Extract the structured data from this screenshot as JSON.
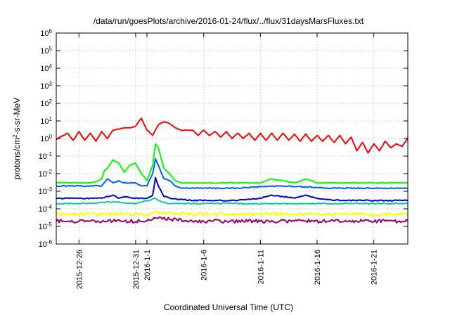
{
  "chart_data": {
    "type": "line",
    "title": "/data/run/goesPlots/archive/2016-01-24/flux/../flux/31daysMarsFluxes.txt",
    "xlabel": "Coordinated Universal Time (UTC)",
    "ylabel_parts": {
      "before": "protons/cm",
      "sup": "2",
      "after": "-s-sr-MeV"
    },
    "y_scale": "log",
    "ylim": [
      1e-06,
      1000000.0
    ],
    "y_ticks": [
      {
        "base": "10",
        "exp": "-6",
        "value": 1e-06
      },
      {
        "base": "10",
        "exp": "-5",
        "value": 1e-05
      },
      {
        "base": "10",
        "exp": "-4",
        "value": 0.0001
      },
      {
        "base": "10",
        "exp": "-3",
        "value": 0.001
      },
      {
        "base": "10",
        "exp": "-2",
        "value": 0.01
      },
      {
        "base": "10",
        "exp": "-1",
        "value": 0.1
      },
      {
        "base": "10",
        "exp": "0",
        "value": 1
      },
      {
        "base": "10",
        "exp": "1",
        "value": 10
      },
      {
        "base": "10",
        "exp": "2",
        "value": 100
      },
      {
        "base": "10",
        "exp": "3",
        "value": 1000
      },
      {
        "base": "10",
        "exp": "4",
        "value": 10000
      },
      {
        "base": "10",
        "exp": "5",
        "value": 100000
      },
      {
        "base": "10",
        "exp": "6",
        "value": 1000000
      }
    ],
    "x_range_days": [
      "2015-12-24",
      "2016-01-24"
    ],
    "x_ticks": [
      {
        "label": "2015-12-26",
        "date": "2015-12-26"
      },
      {
        "label": "2015-12-31",
        "date": "2015-12-31"
      },
      {
        "label": "2016-1-1",
        "date": "2016-01-01"
      },
      {
        "label": "2016-1-6",
        "date": "2016-01-06"
      },
      {
        "label": "2016-1-11",
        "date": "2016-01-11"
      },
      {
        "label": "2016-1-16",
        "date": "2016-01-16"
      },
      {
        "label": "2016-1-21",
        "date": "2016-01-21"
      }
    ],
    "grid": true,
    "legend": "none",
    "series": [
      {
        "color": "#ff0000",
        "points": [
          [
            "2015-12-24",
            0.9
          ],
          [
            "2015-12-25",
            2.0
          ],
          [
            "2015-12-25T12",
            0.8
          ],
          [
            "2015-12-26",
            2.5
          ],
          [
            "2015-12-26T12",
            0.8
          ],
          [
            "2015-12-27",
            2.0
          ],
          [
            "2015-12-27T12",
            0.7
          ],
          [
            "2015-12-28",
            2.5
          ],
          [
            "2015-12-28T12",
            1.0
          ],
          [
            "2015-12-29",
            3.0
          ],
          [
            "2015-12-30",
            4.0
          ],
          [
            "2015-12-30T12",
            4.0
          ],
          [
            "2015-12-31",
            5.0
          ],
          [
            "2015-12-31T12",
            14.0
          ],
          [
            "2016-01-01",
            3.0
          ],
          [
            "2016-01-01T12",
            1.5
          ],
          [
            "2016-01-02",
            6.0
          ],
          [
            "2016-01-02T12",
            9.0
          ],
          [
            "2016-01-03",
            7.0
          ],
          [
            "2016-01-03T12",
            4.0
          ],
          [
            "2016-01-04",
            3.0
          ],
          [
            "2016-01-05",
            3.0
          ],
          [
            "2016-01-05T12",
            1.5
          ],
          [
            "2016-01-06",
            3.0
          ],
          [
            "2016-01-06T12",
            1.5
          ],
          [
            "2016-01-07",
            2.5
          ],
          [
            "2016-01-07T12",
            1.2
          ],
          [
            "2016-01-08",
            2.5
          ],
          [
            "2016-01-08T12",
            1.0
          ],
          [
            "2016-01-09",
            2.0
          ],
          [
            "2016-01-09T12",
            1.0
          ],
          [
            "2016-01-10",
            2.0
          ],
          [
            "2016-01-10T12",
            0.8
          ],
          [
            "2016-01-11",
            2.0
          ],
          [
            "2016-01-11T12",
            0.8
          ],
          [
            "2016-01-12",
            2.0
          ],
          [
            "2016-01-12T12",
            0.8
          ],
          [
            "2016-01-13",
            2.0
          ],
          [
            "2016-01-13T12",
            0.8
          ],
          [
            "2016-01-14",
            1.8
          ],
          [
            "2016-01-14T12",
            0.7
          ],
          [
            "2016-01-15",
            1.8
          ],
          [
            "2016-01-15T12",
            0.7
          ],
          [
            "2016-01-16",
            1.5
          ],
          [
            "2016-01-16T12",
            0.7
          ],
          [
            "2016-01-17",
            1.5
          ],
          [
            "2016-01-17T12",
            0.6
          ],
          [
            "2016-01-18",
            1.5
          ],
          [
            "2016-01-18T12",
            0.5
          ],
          [
            "2016-01-19",
            1.2
          ],
          [
            "2016-01-19T12",
            0.2
          ],
          [
            "2016-01-20",
            0.6
          ],
          [
            "2016-01-20T12",
            0.15
          ],
          [
            "2016-01-21",
            0.5
          ],
          [
            "2016-01-21T12",
            0.2
          ],
          [
            "2016-01-22",
            0.7
          ],
          [
            "2016-01-22T12",
            0.3
          ],
          [
            "2016-01-23",
            0.5
          ],
          [
            "2016-01-23T12",
            0.35
          ],
          [
            "2016-01-24",
            1.1
          ]
        ]
      },
      {
        "color": "#00ff00",
        "points": [
          [
            "2015-12-24",
            0.003
          ],
          [
            "2015-12-26",
            0.003
          ],
          [
            "2015-12-27",
            0.003
          ],
          [
            "2015-12-27T12",
            0.0035
          ],
          [
            "2015-12-28",
            0.005
          ],
          [
            "2015-12-28T06",
            0.015
          ],
          [
            "2015-12-28T12",
            0.02
          ],
          [
            "2015-12-29",
            0.06
          ],
          [
            "2015-12-29T12",
            0.04
          ],
          [
            "2015-12-30",
            0.012
          ],
          [
            "2015-12-30T12",
            0.03
          ],
          [
            "2015-12-31",
            0.04
          ],
          [
            "2015-12-31T12",
            0.01
          ],
          [
            "2016-01-01",
            0.004
          ],
          [
            "2016-01-01T12",
            0.03
          ],
          [
            "2016-01-01T18",
            0.5
          ],
          [
            "2016-01-02",
            0.3
          ],
          [
            "2016-01-02T12",
            0.02
          ],
          [
            "2016-01-03",
            0.01
          ],
          [
            "2016-01-03T12",
            0.004
          ],
          [
            "2016-01-04",
            0.003
          ],
          [
            "2016-01-06",
            0.003
          ],
          [
            "2016-01-09",
            0.003
          ],
          [
            "2016-01-11",
            0.003
          ],
          [
            "2016-01-12",
            0.005
          ],
          [
            "2016-01-13",
            0.004
          ],
          [
            "2016-01-14",
            0.003
          ],
          [
            "2016-01-15",
            0.005
          ],
          [
            "2016-01-16",
            0.003
          ],
          [
            "2016-01-18",
            0.003
          ],
          [
            "2016-01-20",
            0.003
          ],
          [
            "2016-01-22",
            0.003
          ],
          [
            "2016-01-24",
            0.003
          ]
        ]
      },
      {
        "color": "#0060ff",
        "points": [
          [
            "2015-12-24",
            0.002
          ],
          [
            "2015-12-26",
            0.002
          ],
          [
            "2015-12-27",
            0.002
          ],
          [
            "2015-12-28",
            0.002
          ],
          [
            "2015-12-28T12",
            0.005
          ],
          [
            "2015-12-29",
            0.003
          ],
          [
            "2015-12-29T12",
            0.004
          ],
          [
            "2015-12-30",
            0.003
          ],
          [
            "2015-12-31",
            0.003
          ],
          [
            "2015-12-31T12",
            0.002
          ],
          [
            "2016-01-01",
            0.002
          ],
          [
            "2016-01-01T12",
            0.01
          ],
          [
            "2016-01-01T18",
            0.07
          ],
          [
            "2016-01-02",
            0.03
          ],
          [
            "2016-01-02T12",
            0.005
          ],
          [
            "2016-01-03",
            0.004
          ],
          [
            "2016-01-03T12",
            0.002
          ],
          [
            "2016-01-04",
            0.0015
          ],
          [
            "2016-01-06",
            0.0015
          ],
          [
            "2016-01-09",
            0.0015
          ],
          [
            "2016-01-11",
            0.0018
          ],
          [
            "2016-01-13",
            0.002
          ],
          [
            "2016-01-15",
            0.0018
          ],
          [
            "2016-01-17",
            0.0015
          ],
          [
            "2016-01-20",
            0.0015
          ],
          [
            "2016-01-24",
            0.0015
          ]
        ]
      },
      {
        "color": "#0000cc",
        "points": [
          [
            "2015-12-24",
            0.0004
          ],
          [
            "2015-12-26",
            0.0004
          ],
          [
            "2015-12-27",
            0.0004
          ],
          [
            "2015-12-28",
            0.0004
          ],
          [
            "2015-12-28T12",
            0.0005
          ],
          [
            "2015-12-29",
            0.0006
          ],
          [
            "2015-12-29T12",
            0.0004
          ],
          [
            "2015-12-30",
            0.0005
          ],
          [
            "2015-12-31",
            0.0004
          ],
          [
            "2016-01-01",
            0.0004
          ],
          [
            "2016-01-01T12",
            0.0006
          ],
          [
            "2016-01-01T18",
            0.006
          ],
          [
            "2016-01-02",
            0.002
          ],
          [
            "2016-01-02T12",
            0.0005
          ],
          [
            "2016-01-03",
            0.0004
          ],
          [
            "2016-01-05",
            0.0003
          ],
          [
            "2016-01-07",
            0.0003
          ],
          [
            "2016-01-09",
            0.0003
          ],
          [
            "2016-01-11",
            0.0004
          ],
          [
            "2016-01-12",
            0.0006
          ],
          [
            "2016-01-13",
            0.0005
          ],
          [
            "2016-01-14",
            0.0004
          ],
          [
            "2016-01-15",
            0.0006
          ],
          [
            "2016-01-16",
            0.0004
          ],
          [
            "2016-01-18",
            0.0003
          ],
          [
            "2016-01-20",
            0.0003
          ],
          [
            "2016-01-22",
            0.0003
          ],
          [
            "2016-01-24",
            0.0003
          ]
        ]
      },
      {
        "color": "#00d0a0",
        "points": [
          [
            "2015-12-24",
            0.0002
          ],
          [
            "2015-12-27",
            0.0002
          ],
          [
            "2015-12-29",
            0.00025
          ],
          [
            "2015-12-31",
            0.0002
          ],
          [
            "2016-01-01T18",
            0.0004
          ],
          [
            "2016-01-02",
            0.0003
          ],
          [
            "2016-01-03",
            0.0002
          ],
          [
            "2016-01-06",
            0.0002
          ],
          [
            "2016-01-09",
            0.0002
          ],
          [
            "2016-01-12",
            0.0002
          ],
          [
            "2016-01-15",
            0.0002
          ],
          [
            "2016-01-18",
            0.0002
          ],
          [
            "2016-01-21",
            0.0002
          ],
          [
            "2016-01-24",
            0.0002
          ]
        ]
      },
      {
        "color": "#ffff00",
        "points": [
          [
            "2015-12-24",
            5e-05
          ],
          [
            "2015-12-27",
            5e-05
          ],
          [
            "2015-12-30",
            5e-05
          ],
          [
            "2016-01-01",
            5e-05
          ],
          [
            "2016-01-02",
            6e-05
          ],
          [
            "2016-01-05",
            5e-05
          ],
          [
            "2016-01-08",
            5e-05
          ],
          [
            "2016-01-11",
            5e-05
          ],
          [
            "2016-01-14",
            5e-05
          ],
          [
            "2016-01-17",
            5e-05
          ],
          [
            "2016-01-20",
            5e-05
          ],
          [
            "2016-01-24",
            5e-05
          ]
        ]
      },
      {
        "color": "#990066",
        "points": [
          [
            "2015-12-24",
            2e-05
          ],
          [
            "2015-12-27",
            2e-05
          ],
          [
            "2015-12-30",
            2e-05
          ],
          [
            "2016-01-01",
            2e-05
          ],
          [
            "2016-01-02",
            3e-05
          ],
          [
            "2016-01-05",
            2e-05
          ],
          [
            "2016-01-08",
            2e-05
          ],
          [
            "2016-01-11",
            2e-05
          ],
          [
            "2016-01-14",
            2e-05
          ],
          [
            "2016-01-17",
            2e-05
          ],
          [
            "2016-01-20",
            2e-05
          ],
          [
            "2016-01-24",
            2e-05
          ]
        ]
      }
    ]
  }
}
